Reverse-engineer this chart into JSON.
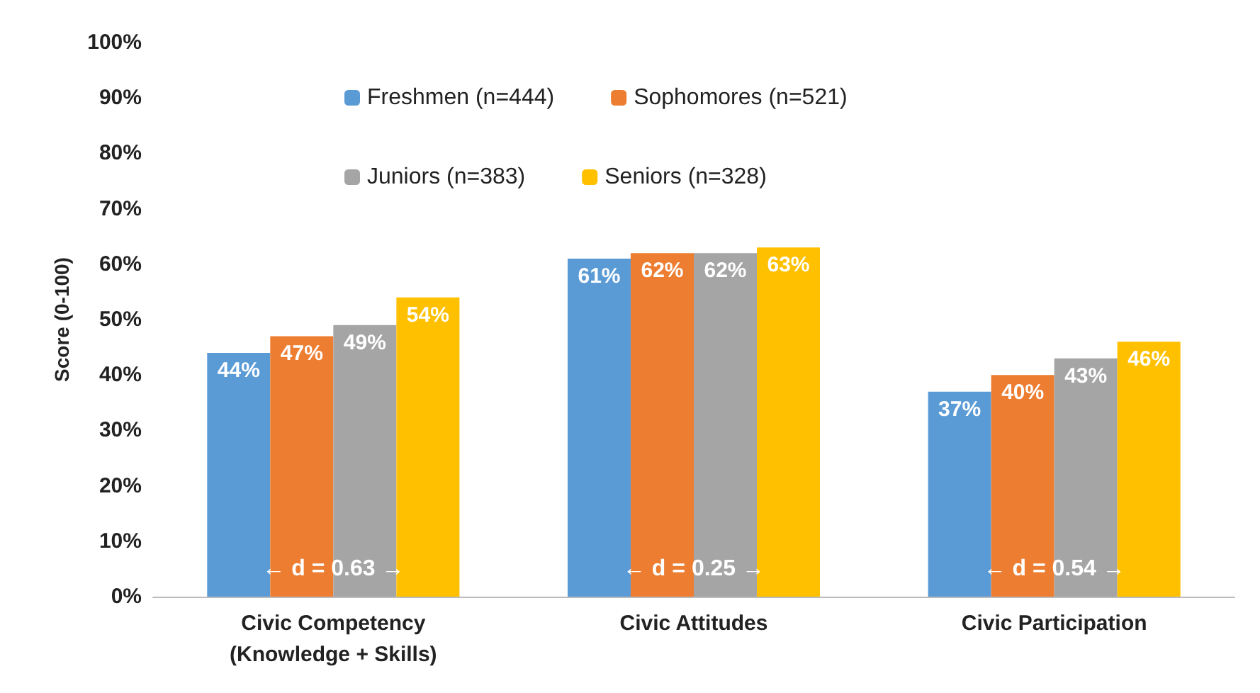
{
  "chart_data": {
    "type": "bar",
    "ylabel": "Score (0-100)",
    "categories": [
      "Civic Competency\n(Knowledge + Skills)",
      "Civic Attitudes",
      "Civic Participation"
    ],
    "series": [
      {
        "name": "Freshmen (n=444)",
        "color": "#5b9bd5",
        "values": [
          44,
          61,
          37
        ],
        "value_labels": [
          "44%",
          "61%",
          "37%"
        ]
      },
      {
        "name": "Sophomores (n=521)",
        "color": "#ed7d31",
        "values": [
          47,
          62,
          40
        ],
        "value_labels": [
          "47%",
          "62%",
          "40%"
        ]
      },
      {
        "name": "Juniors (n=383)",
        "color": "#a5a5a5",
        "values": [
          49,
          62,
          43
        ],
        "value_labels": [
          "49%",
          "62%",
          "43%"
        ]
      },
      {
        "name": "Seniors (n=328)",
        "color": "#ffc000",
        "values": [
          54,
          63,
          46
        ],
        "value_labels": [
          "54%",
          "63%",
          "46%"
        ]
      }
    ],
    "ylim": [
      0,
      100
    ],
    "yticks": [
      {
        "value": 0,
        "label": "0%"
      },
      {
        "value": 10,
        "label": "10%"
      },
      {
        "value": 20,
        "label": "20%"
      },
      {
        "value": 30,
        "label": "30%"
      },
      {
        "value": 40,
        "label": "40%"
      },
      {
        "value": 50,
        "label": "50%"
      },
      {
        "value": 60,
        "label": "60%"
      },
      {
        "value": 70,
        "label": "70%"
      },
      {
        "value": 80,
        "label": "80%"
      },
      {
        "value": 90,
        "label": "90%"
      },
      {
        "value": 100,
        "label": "100%"
      }
    ],
    "annotations": [
      {
        "text": "← d = 0.63 →",
        "x": "Civic Competency\n(Knowledge + Skills)",
        "y": 3
      },
      {
        "text": "← d = 0.25 →",
        "x": "Civic Attitudes",
        "y": 3
      },
      {
        "text": "← d = 0.54 →",
        "x": "Civic Participation",
        "y": 3
      }
    ],
    "legend": "top"
  }
}
